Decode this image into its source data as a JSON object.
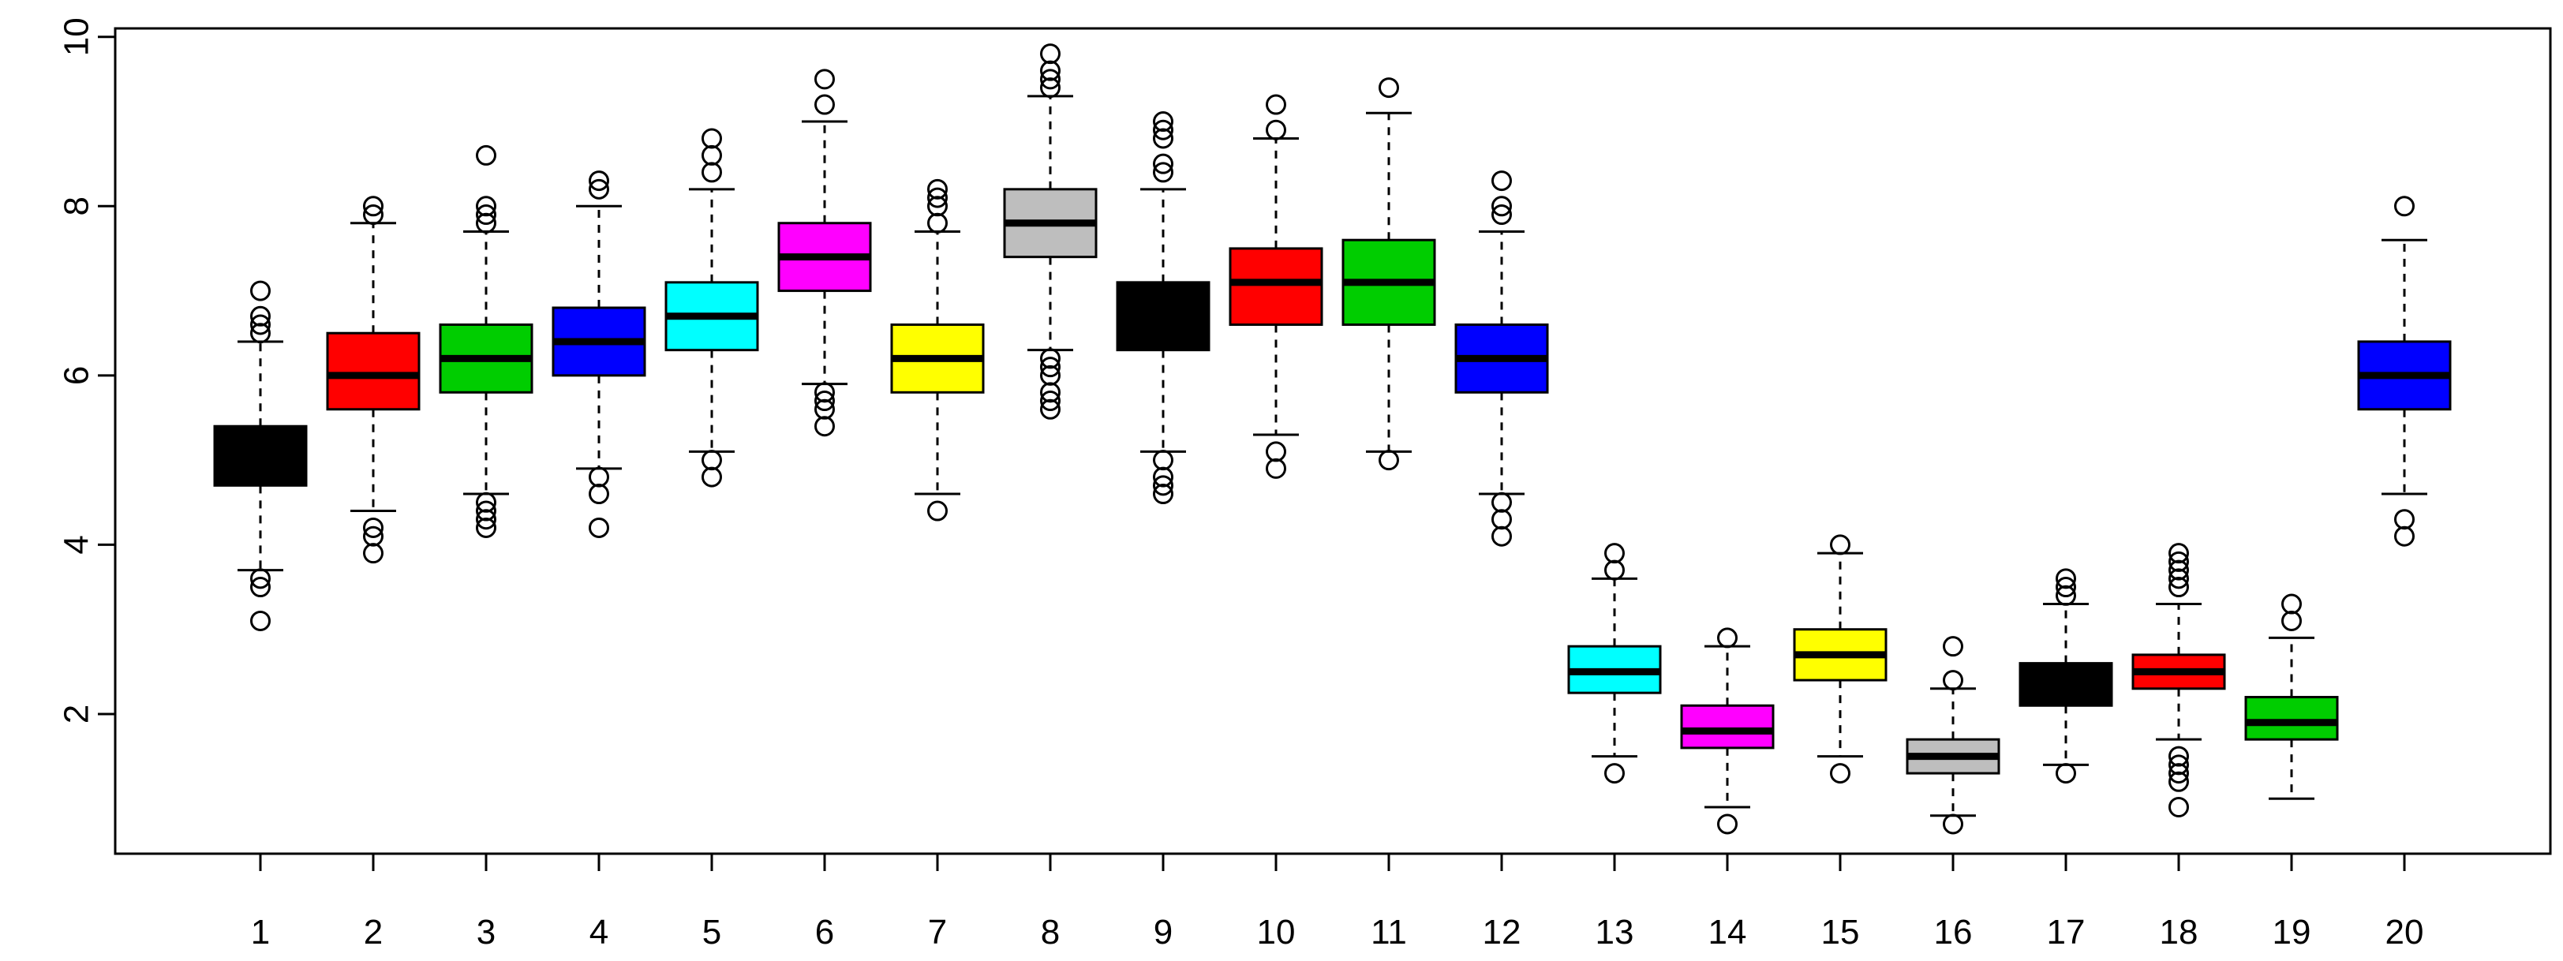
{
  "chart_data": {
    "type": "boxplot",
    "title": "",
    "xlabel": "",
    "ylabel": "",
    "ylim": [
      0.35,
      10.1
    ],
    "yticks": [
      2,
      4,
      6,
      8,
      10
    ],
    "grid": false,
    "categories": [
      "1",
      "2",
      "3",
      "4",
      "5",
      "6",
      "7",
      "8",
      "9",
      "10",
      "11",
      "12",
      "13",
      "14",
      "15",
      "16",
      "17",
      "18",
      "19",
      "20"
    ],
    "boxes": [
      {
        "label": "1",
        "color": "#000000",
        "whisker_low": 3.7,
        "q1": 4.7,
        "median": 5.0,
        "q3": 5.4,
        "whisker_high": 6.4,
        "outliers": [
          3.1,
          3.5,
          3.6,
          6.5,
          6.6,
          6.7,
          7.0
        ]
      },
      {
        "label": "2",
        "color": "#ff0000",
        "whisker_low": 4.4,
        "q1": 5.6,
        "median": 6.0,
        "q3": 6.5,
        "whisker_high": 7.8,
        "outliers": [
          3.9,
          4.1,
          4.2,
          7.9,
          8.0
        ]
      },
      {
        "label": "3",
        "color": "#00cd00",
        "whisker_low": 4.6,
        "q1": 5.8,
        "median": 6.2,
        "q3": 6.6,
        "whisker_high": 7.7,
        "outliers": [
          4.2,
          4.3,
          4.4,
          4.5,
          7.8,
          7.9,
          8.0,
          8.6
        ]
      },
      {
        "label": "4",
        "color": "#0000ff",
        "whisker_low": 4.9,
        "q1": 6.0,
        "median": 6.4,
        "q3": 6.8,
        "whisker_high": 8.0,
        "outliers": [
          4.2,
          4.6,
          4.8,
          8.2,
          8.3
        ]
      },
      {
        "label": "5",
        "color": "#00ffff",
        "whisker_low": 5.1,
        "q1": 6.3,
        "median": 6.7,
        "q3": 7.1,
        "whisker_high": 8.2,
        "outliers": [
          4.8,
          5.0,
          8.4,
          8.6,
          8.8
        ]
      },
      {
        "label": "6",
        "color": "#ff00ff",
        "whisker_low": 5.9,
        "q1": 7.0,
        "median": 7.4,
        "q3": 7.8,
        "whisker_high": 9.0,
        "outliers": [
          5.4,
          5.6,
          5.7,
          5.8,
          9.2,
          9.5
        ]
      },
      {
        "label": "7",
        "color": "#ffff00",
        "whisker_low": 4.6,
        "q1": 5.8,
        "median": 6.2,
        "q3": 6.6,
        "whisker_high": 7.7,
        "outliers": [
          4.4,
          7.8,
          8.0,
          8.1,
          8.2
        ]
      },
      {
        "label": "8",
        "color": "#bebebe",
        "whisker_low": 6.3,
        "q1": 7.4,
        "median": 7.8,
        "q3": 8.2,
        "whisker_high": 9.3,
        "outliers": [
          5.6,
          5.7,
          5.8,
          6.0,
          6.1,
          6.2,
          9.4,
          9.5,
          9.6,
          9.8
        ]
      },
      {
        "label": "9",
        "color": "#000000",
        "whisker_low": 5.1,
        "q1": 6.3,
        "median": 6.7,
        "q3": 7.1,
        "whisker_high": 8.2,
        "outliers": [
          4.6,
          4.7,
          4.8,
          5.0,
          8.4,
          8.5,
          8.8,
          8.9,
          9.0
        ]
      },
      {
        "label": "10",
        "color": "#ff0000",
        "whisker_low": 5.3,
        "q1": 6.6,
        "median": 7.1,
        "q3": 7.5,
        "whisker_high": 8.8,
        "outliers": [
          4.9,
          5.1,
          8.9,
          9.2
        ]
      },
      {
        "label": "11",
        "color": "#00cd00",
        "whisker_low": 5.1,
        "q1": 6.6,
        "median": 7.1,
        "q3": 7.6,
        "whisker_high": 9.1,
        "outliers": [
          5.0,
          9.4
        ]
      },
      {
        "label": "12",
        "color": "#0000ff",
        "whisker_low": 4.6,
        "q1": 5.8,
        "median": 6.2,
        "q3": 6.6,
        "whisker_high": 7.7,
        "outliers": [
          4.1,
          4.3,
          4.5,
          7.9,
          8.0,
          8.3
        ]
      },
      {
        "label": "13",
        "color": "#00ffff",
        "whisker_low": 1.5,
        "q1": 2.25,
        "median": 2.5,
        "q3": 2.8,
        "whisker_high": 3.6,
        "outliers": [
          1.3,
          3.7,
          3.9
        ]
      },
      {
        "label": "14",
        "color": "#ff00ff",
        "whisker_low": 0.9,
        "q1": 1.6,
        "median": 1.8,
        "q3": 2.1,
        "whisker_high": 2.8,
        "outliers": [
          0.7,
          2.9
        ]
      },
      {
        "label": "15",
        "color": "#ffff00",
        "whisker_low": 1.5,
        "q1": 2.4,
        "median": 2.7,
        "q3": 3.0,
        "whisker_high": 3.9,
        "outliers": [
          1.3,
          4.0
        ]
      },
      {
        "label": "16",
        "color": "#bebebe",
        "whisker_low": 0.8,
        "q1": 1.3,
        "median": 1.5,
        "q3": 1.7,
        "whisker_high": 2.3,
        "outliers": [
          0.7,
          2.4,
          2.8
        ]
      },
      {
        "label": "17",
        "color": "#000000",
        "whisker_low": 1.4,
        "q1": 2.1,
        "median": 2.35,
        "q3": 2.6,
        "whisker_high": 3.3,
        "outliers": [
          1.3,
          3.4,
          3.5,
          3.6
        ]
      },
      {
        "label": "18",
        "color": "#ff0000",
        "whisker_low": 1.7,
        "q1": 2.3,
        "median": 2.5,
        "q3": 2.7,
        "whisker_high": 3.3,
        "outliers": [
          0.9,
          1.2,
          1.3,
          1.4,
          1.5,
          3.5,
          3.6,
          3.7,
          3.8,
          3.9
        ]
      },
      {
        "label": "19",
        "color": "#00cd00",
        "whisker_low": 1.0,
        "q1": 1.7,
        "median": 1.9,
        "q3": 2.2,
        "whisker_high": 2.9,
        "outliers": [
          3.1,
          3.3
        ]
      },
      {
        "label": "20",
        "color": "#0000ff",
        "whisker_low": 4.6,
        "q1": 5.6,
        "median": 6.0,
        "q3": 6.4,
        "whisker_high": 7.6,
        "outliers": [
          4.1,
          4.3,
          8.0
        ]
      }
    ]
  }
}
